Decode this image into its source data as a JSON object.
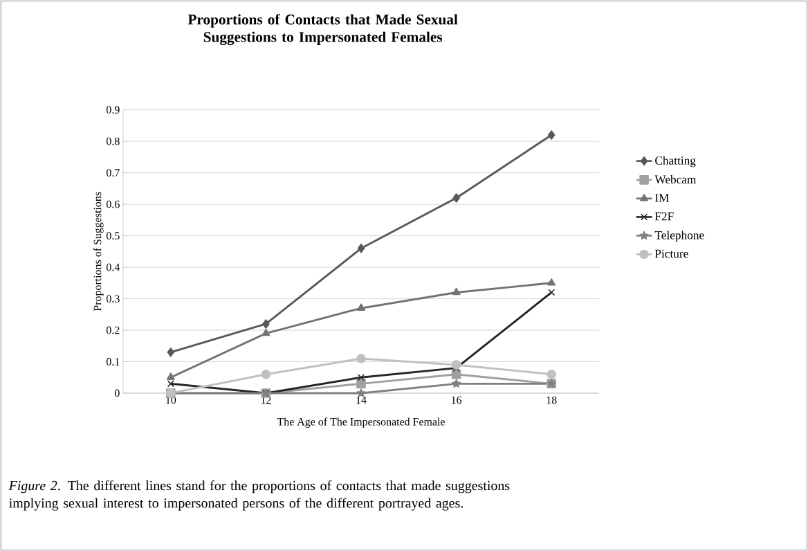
{
  "chart_data": {
    "type": "line",
    "title": "Proportions of Contacts that Made Sexual Suggestions to Impersonated Females",
    "xlabel": "The Age of The Impersonated Female",
    "ylabel": "Proportions of Suggestions",
    "categories": [
      "10",
      "12",
      "14",
      "16",
      "18"
    ],
    "series": [
      {
        "name": "Chatting",
        "color": "#595959",
        "marker": "diamond",
        "values": [
          0.13,
          0.22,
          0.46,
          0.62,
          0.82
        ]
      },
      {
        "name": "Webcam",
        "color": "#a0a0a0",
        "marker": "square",
        "values": [
          0,
          0,
          0.03,
          0.06,
          0.03
        ]
      },
      {
        "name": "IM",
        "color": "#737373",
        "marker": "triangle",
        "values": [
          0.05,
          0.19,
          0.27,
          0.32,
          0.35
        ]
      },
      {
        "name": "F2F",
        "color": "#262626",
        "marker": "cross",
        "values": [
          0.03,
          0,
          0.05,
          0.08,
          0.32
        ]
      },
      {
        "name": "Telephone",
        "color": "#808080",
        "marker": "star",
        "values": [
          0,
          0,
          0,
          0.03,
          0.03
        ]
      },
      {
        "name": "Picture",
        "color": "#c0c0c0",
        "marker": "circle",
        "values": [
          0,
          0.06,
          0.11,
          0.09,
          0.06
        ]
      }
    ],
    "ylim": [
      0,
      0.9
    ],
    "yticks": [
      0,
      0.1,
      0.2,
      0.3,
      0.4,
      0.5,
      0.6,
      0.7,
      0.8,
      0.9
    ],
    "grid": "y",
    "legend": "right",
    "line_style": "solid",
    "annotations": [
      "*Figure 2*. The different lines stand  for the proportions of contacts that made suggestions implying sexual interest to impersonated persons of the different portrayed ages."
    ]
  }
}
